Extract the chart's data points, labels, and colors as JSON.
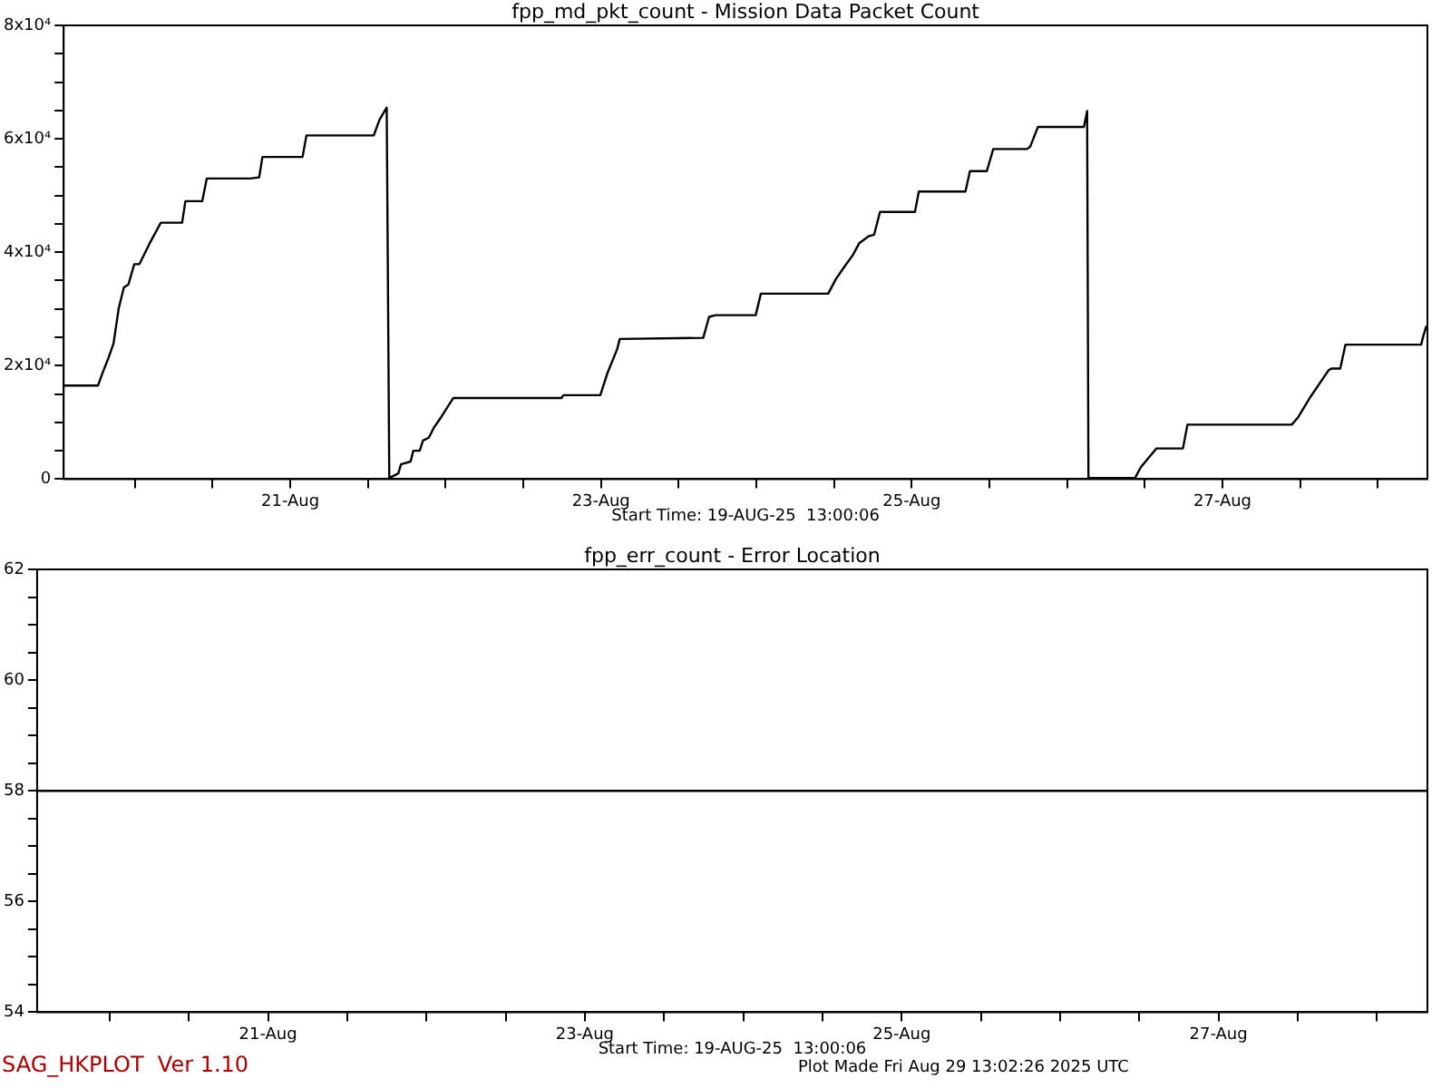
{
  "chart_data": [
    {
      "type": "line",
      "title": "fpp_md_pkt_count - Mission Data Packet Count",
      "grid": false,
      "legend": false,
      "marker": "none",
      "line_style": "solid",
      "x": [
        "2025-08-19T13:00",
        "2025-08-19T18:18",
        "2025-08-19T19:00",
        "2025-08-19T19:54",
        "2025-08-19T20:42",
        "2025-08-19T21:30",
        "2025-08-19T22:18",
        "2025-08-19T23:00",
        "2025-08-19T23:54",
        "2025-08-20T00:42",
        "2025-08-20T02:18",
        "2025-08-20T04:00",
        "2025-08-20T07:18",
        "2025-08-20T07:48",
        "2025-08-20T10:24",
        "2025-08-20T11:06",
        "2025-08-20T17:48",
        "2025-08-20T19:12",
        "2025-08-20T19:42",
        "2025-08-21T01:54",
        "2025-08-21T02:30",
        "2025-08-21T12:54",
        "2025-08-21T13:48",
        "2025-08-21T14:54",
        "2025-08-21T15:18",
        "2025-08-21T15:20",
        "2025-08-21T16:42",
        "2025-08-21T17:06",
        "2025-08-21T18:36",
        "2025-08-21T19:00",
        "2025-08-21T20:00",
        "2025-08-21T20:30",
        "2025-08-21T21:24",
        "2025-08-21T22:12",
        "2025-08-21T23:18",
        "2025-08-22T00:18",
        "2025-08-22T01:12",
        "2025-08-22T17:54",
        "2025-08-22T18:12",
        "2025-08-22T23:54",
        "2025-08-23T01:00",
        "2025-08-23T02:30",
        "2025-08-23T02:54",
        "2025-08-23T15:48",
        "2025-08-23T16:42",
        "2025-08-23T17:42",
        "2025-08-23T23:54",
        "2025-08-24T00:42",
        "2025-08-24T11:06",
        "2025-08-24T12:18",
        "2025-08-24T13:42",
        "2025-08-24T14:54",
        "2025-08-24T15:54",
        "2025-08-24T17:18",
        "2025-08-24T18:12",
        "2025-08-24T19:06",
        "2025-08-25T00:30",
        "2025-08-25T01:06",
        "2025-08-25T08:18",
        "2025-08-25T09:00",
        "2025-08-25T11:36",
        "2025-08-25T12:36",
        "2025-08-25T17:48",
        "2025-08-25T18:18",
        "2025-08-25T19:30",
        "2025-08-26T02:36",
        "2025-08-26T03:06",
        "2025-08-26T03:18",
        "2025-08-26T10:30",
        "2025-08-26T11:24",
        "2025-08-26T13:48",
        "2025-08-26T17:54",
        "2025-08-26T18:36",
        "2025-08-27T10:42",
        "2025-08-27T11:42",
        "2025-08-27T13:36",
        "2025-08-27T16:24",
        "2025-08-27T16:54",
        "2025-08-27T18:12",
        "2025-08-27T19:00",
        "2025-08-28T06:42",
        "2025-08-28T07:00",
        "2025-08-28T07:30"
      ],
      "series": [
        {
          "color": "#000000",
          "values": [
            16500,
            16500,
            18700,
            21300,
            23900,
            30100,
            33800,
            34300,
            37900,
            37900,
            41600,
            45200,
            45200,
            49000,
            49000,
            53000,
            53000,
            53200,
            56800,
            56800,
            60600,
            60600,
            63400,
            65500,
            0,
            200,
            1000,
            2600,
            3100,
            5000,
            5000,
            6800,
            7300,
            9100,
            10900,
            12700,
            14300,
            14300,
            14800,
            14800,
            18700,
            22900,
            24700,
            24900,
            28600,
            28900,
            28900,
            32700,
            32700,
            35300,
            37600,
            39500,
            41600,
            42800,
            43100,
            47100,
            47100,
            50700,
            50700,
            54300,
            54300,
            58200,
            58200,
            58600,
            62100,
            62100,
            64900,
            200,
            200,
            2100,
            5400,
            5400,
            9600,
            9600,
            10900,
            14500,
            19200,
            19500,
            19500,
            23700,
            23700,
            25100,
            27000
          ]
        }
      ],
      "xlim": [
        "2025-08-19T13:00",
        "2025-08-28T07:40"
      ],
      "xticks": [
        {
          "value": "2025-08-20T00:00",
          "label": null
        },
        {
          "value": "2025-08-20T12:00",
          "label": null
        },
        {
          "value": "2025-08-21T00:00",
          "label": "21-Aug"
        },
        {
          "value": "2025-08-21T12:00",
          "label": null
        },
        {
          "value": "2025-08-22T00:00",
          "label": null
        },
        {
          "value": "2025-08-22T12:00",
          "label": null
        },
        {
          "value": "2025-08-23T00:00",
          "label": "23-Aug"
        },
        {
          "value": "2025-08-23T12:00",
          "label": null
        },
        {
          "value": "2025-08-24T00:00",
          "label": null
        },
        {
          "value": "2025-08-24T12:00",
          "label": null
        },
        {
          "value": "2025-08-25T00:00",
          "label": "25-Aug"
        },
        {
          "value": "2025-08-25T12:00",
          "label": null
        },
        {
          "value": "2025-08-26T00:00",
          "label": null
        },
        {
          "value": "2025-08-26T12:00",
          "label": null
        },
        {
          "value": "2025-08-27T00:00",
          "label": "27-Aug"
        },
        {
          "value": "2025-08-27T12:00",
          "label": null
        },
        {
          "value": "2025-08-28T00:00",
          "label": null
        }
      ],
      "ylim": [
        0,
        80000
      ],
      "yticks": [
        0,
        {
          "value": 5000,
          "label": null
        },
        {
          "value": 10000,
          "label": null
        },
        {
          "value": 15000,
          "label": null
        },
        {
          "value": 20000,
          "label": "2x10⁴"
        },
        {
          "value": 25000,
          "label": null
        },
        {
          "value": 30000,
          "label": null
        },
        {
          "value": 35000,
          "label": null
        },
        {
          "value": 40000,
          "label": "4x10⁴"
        },
        {
          "value": 45000,
          "label": null
        },
        {
          "value": 50000,
          "label": null
        },
        {
          "value": 55000,
          "label": null
        },
        {
          "value": 60000,
          "label": "6x10⁴"
        },
        {
          "value": 65000,
          "label": null
        },
        {
          "value": 70000,
          "label": null
        },
        {
          "value": 75000,
          "label": null
        },
        {
          "value": 80000,
          "label": "8x10⁴"
        }
      ],
      "annotations": [
        "Start Time: 19-AUG-25  13:00:06"
      ]
    },
    {
      "type": "line",
      "title": "fpp_err_count - Error Location",
      "grid": false,
      "legend": false,
      "marker": "none",
      "line_style": "solid",
      "x": [
        "2025-08-19T13:00",
        "2025-08-28T07:40"
      ],
      "series": [
        {
          "color": "#000000",
          "values": [
            58,
            58
          ]
        }
      ],
      "xlim": [
        "2025-08-19T13:00",
        "2025-08-28T07:40"
      ],
      "xticks": [
        {
          "value": "2025-08-20T00:00",
          "label": null
        },
        {
          "value": "2025-08-20T12:00",
          "label": null
        },
        {
          "value": "2025-08-21T00:00",
          "label": "21-Aug"
        },
        {
          "value": "2025-08-21T12:00",
          "label": null
        },
        {
          "value": "2025-08-22T00:00",
          "label": null
        },
        {
          "value": "2025-08-22T12:00",
          "label": null
        },
        {
          "value": "2025-08-23T00:00",
          "label": "23-Aug"
        },
        {
          "value": "2025-08-23T12:00",
          "label": null
        },
        {
          "value": "2025-08-24T00:00",
          "label": null
        },
        {
          "value": "2025-08-24T12:00",
          "label": null
        },
        {
          "value": "2025-08-25T00:00",
          "label": "25-Aug"
        },
        {
          "value": "2025-08-25T12:00",
          "label": null
        },
        {
          "value": "2025-08-26T00:00",
          "label": null
        },
        {
          "value": "2025-08-26T12:00",
          "label": null
        },
        {
          "value": "2025-08-27T00:00",
          "label": "27-Aug"
        },
        {
          "value": "2025-08-27T12:00",
          "label": null
        },
        {
          "value": "2025-08-28T00:00",
          "label": null
        }
      ],
      "ylim": [
        54,
        62
      ],
      "yticks": [
        54,
        {
          "value": 54.5,
          "label": null
        },
        {
          "value": 55,
          "label": null
        },
        {
          "value": 55.5,
          "label": null
        },
        56,
        {
          "value": 56.5,
          "label": null
        },
        {
          "value": 57,
          "label": null
        },
        {
          "value": 57.5,
          "label": null
        },
        58,
        {
          "value": 58.5,
          "label": null
        },
        {
          "value": 59,
          "label": null
        },
        {
          "value": 59.5,
          "label": null
        },
        60,
        {
          "value": 60.5,
          "label": null
        },
        {
          "value": 61,
          "label": null
        },
        {
          "value": 61.5,
          "label": null
        },
        62
      ],
      "annotations": [
        "Start Time: 19-AUG-25  13:00:06",
        "SAG_HKPLOT  Ver 1.10",
        "Plot Made Fri Aug 29 13:02:26 2025 UTC"
      ]
    }
  ]
}
